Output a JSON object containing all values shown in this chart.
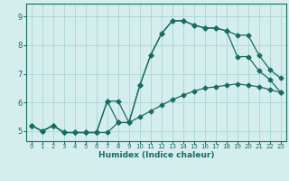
{
  "xlabel": "Humidex (Indice chaleur)",
  "bg_color": "#d4eeed",
  "grid_color": "#b0d8d5",
  "line_color": "#1a6b60",
  "xlim": [
    -0.5,
    23.5
  ],
  "ylim": [
    4.65,
    9.45
  ],
  "xticks": [
    0,
    1,
    2,
    3,
    4,
    5,
    6,
    7,
    8,
    9,
    10,
    11,
    12,
    13,
    14,
    15,
    16,
    17,
    18,
    19,
    20,
    21,
    22,
    23
  ],
  "yticks": [
    5,
    6,
    7,
    8,
    9
  ],
  "line1_x": [
    0,
    1,
    2,
    3,
    4,
    5,
    6,
    7,
    8,
    9,
    10,
    11,
    12,
    13,
    14,
    15,
    16,
    17,
    18,
    19,
    20,
    21,
    22,
    23
  ],
  "line1_y": [
    5.2,
    5.0,
    5.2,
    4.95,
    4.95,
    4.95,
    4.95,
    6.05,
    5.3,
    5.3,
    6.6,
    7.65,
    8.4,
    8.85,
    8.85,
    8.7,
    8.6,
    8.6,
    8.5,
    8.35,
    8.35,
    7.65,
    7.15,
    6.85
  ],
  "line2_x": [
    0,
    1,
    2,
    3,
    4,
    5,
    6,
    7,
    8,
    9,
    10,
    11,
    12,
    13,
    14,
    15,
    16,
    17,
    18,
    19,
    20,
    21,
    22,
    23
  ],
  "line2_y": [
    5.2,
    5.0,
    5.2,
    4.95,
    4.95,
    4.95,
    4.95,
    4.95,
    5.3,
    5.3,
    5.5,
    5.7,
    5.9,
    6.1,
    6.25,
    6.4,
    6.5,
    6.55,
    6.6,
    6.65,
    6.6,
    6.55,
    6.45,
    6.35
  ],
  "line3_x": [
    0,
    1,
    2,
    3,
    4,
    5,
    6,
    7,
    8,
    9,
    10,
    11,
    12,
    13,
    14,
    15,
    16,
    17,
    18,
    19,
    20,
    21,
    22,
    23
  ],
  "line3_y": [
    5.2,
    5.0,
    5.2,
    4.95,
    4.95,
    4.95,
    4.95,
    6.05,
    6.05,
    5.3,
    6.6,
    7.65,
    8.4,
    8.85,
    8.85,
    8.7,
    8.6,
    8.6,
    8.5,
    7.6,
    7.6,
    7.1,
    6.8,
    6.35
  ]
}
